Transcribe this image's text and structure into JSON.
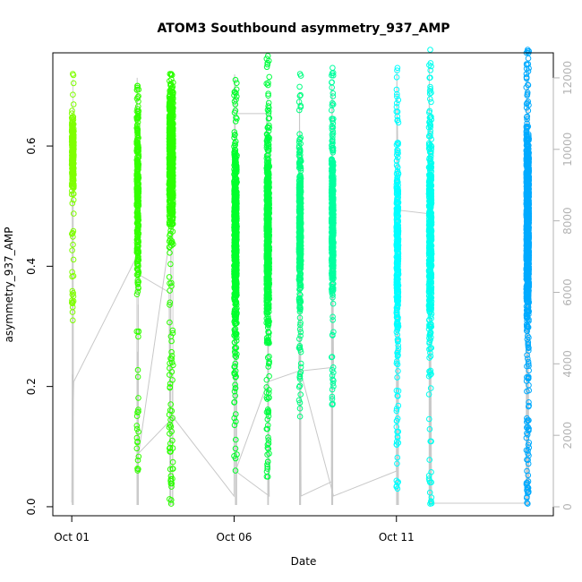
{
  "chart_data": {
    "type": "scatter",
    "title": "ATOM3 Southbound asymmetry_937_AMP",
    "xlabel": "Date",
    "ylabel": "asymmetry_937_AMP",
    "x_ticks": [
      "Oct 01",
      "Oct 06",
      "Oct 11"
    ],
    "xlim": [
      "2023-09-30T10:00",
      "2023-10-15T20:00"
    ],
    "ylim": [
      -0.015,
      0.755
    ],
    "y_ticks": [
      0.0,
      0.2,
      0.4,
      0.6
    ],
    "y2_label": "",
    "y2_ticks": [
      0,
      2000,
      4000,
      6000,
      8000,
      10000,
      12000
    ],
    "y2lim": [
      -250,
      12700
    ],
    "grid": false,
    "legend": "none",
    "series": [
      {
        "day": "2023-10-01",
        "start": "2023-10-01T00:00",
        "end": "2023-10-01T01:30",
        "color": "#7fff00",
        "range": [
          0.31,
          0.72
        ],
        "center": 0.59,
        "spread": 0.05,
        "count": 260
      },
      {
        "day": "2023-10-03",
        "start": "2023-10-03T00:00",
        "end": "2023-10-03T01:30",
        "color": "#33ff00",
        "range": [
          0.06,
          0.7
        ],
        "center": 0.52,
        "spread": 0.14,
        "count": 300
      },
      {
        "day": "2023-10-04",
        "start": "2023-10-04T00:00",
        "end": "2023-10-04T03:00",
        "color": "#2bff00",
        "range": [
          0.005,
          0.72
        ],
        "center": 0.58,
        "spread": 0.1,
        "count": 700
      },
      {
        "day": "2023-10-06",
        "start": "2023-10-06T00:00",
        "end": "2023-10-06T02:00",
        "color": "#00ff2b",
        "range": [
          0.06,
          0.71
        ],
        "center": 0.45,
        "spread": 0.13,
        "count": 650
      },
      {
        "day": "2023-10-07",
        "start": "2023-10-07T00:00",
        "end": "2023-10-07T02:00",
        "color": "#00ff40",
        "range": [
          0.05,
          0.75
        ],
        "center": 0.45,
        "spread": 0.14,
        "count": 650
      },
      {
        "day": "2023-10-08",
        "start": "2023-10-08T00:00",
        "end": "2023-10-08T01:30",
        "color": "#00ff80",
        "range": [
          0.15,
          0.72
        ],
        "center": 0.47,
        "spread": 0.11,
        "count": 420
      },
      {
        "day": "2023-10-09",
        "start": "2023-10-09T00:00",
        "end": "2023-10-09T01:30",
        "color": "#00ff9f",
        "range": [
          0.17,
          0.73
        ],
        "center": 0.48,
        "spread": 0.1,
        "count": 450
      },
      {
        "day": "2023-10-11",
        "start": "2023-10-11T00:00",
        "end": "2023-10-11T01:30",
        "color": "#00ffff",
        "range": [
          0.03,
          0.73
        ],
        "center": 0.43,
        "spread": 0.13,
        "count": 420
      },
      {
        "day": "2023-10-12",
        "start": "2023-10-12T00:00",
        "end": "2023-10-12T02:00",
        "color": "#00ffef",
        "range": [
          0.005,
          0.76
        ],
        "center": 0.45,
        "spread": 0.15,
        "count": 520
      },
      {
        "day": "2023-10-15",
        "start": "2023-10-15T00:00",
        "end": "2023-10-15T02:00",
        "color": "#00aaff",
        "range": [
          0.005,
          0.76
        ],
        "center": 0.47,
        "spread": 0.13,
        "count": 1100
      }
    ],
    "secondary_line": {
      "color": "#c8c8c8",
      "points": [
        {
          "t": "2023-10-01T00:00",
          "v": 120
        },
        {
          "t": "2023-10-01T00:20",
          "v": 3700
        },
        {
          "t": "2023-10-01T00:40",
          "v": 2000
        },
        {
          "t": "2023-10-01T01:30",
          "v": 3500
        },
        {
          "t": "2023-10-03T00:00",
          "v": 7000
        },
        {
          "t": "2023-10-03T00:20",
          "v": 12000
        },
        {
          "t": "2023-10-03T01:30",
          "v": 6500
        },
        {
          "t": "2023-10-04T00:00",
          "v": 6000
        },
        {
          "t": "2023-10-04T00:30",
          "v": 1500
        },
        {
          "t": "2023-10-04T01:30",
          "v": 7700
        },
        {
          "t": "2023-10-04T03:00",
          "v": 8200
        },
        {
          "t": "2023-10-03T01:30",
          "v": 1500
        },
        {
          "t": "2023-10-04T03:00",
          "v": 2500
        },
        {
          "t": "2023-10-06T00:00",
          "v": 300
        },
        {
          "t": "2023-10-06T00:20",
          "v": 12100
        },
        {
          "t": "2023-10-06T02:00",
          "v": 11000
        },
        {
          "t": "2023-10-07T00:00",
          "v": 11000
        },
        {
          "t": "2023-10-07T02:00",
          "v": 300
        },
        {
          "t": "2023-10-06T01:00",
          "v": 1000
        },
        {
          "t": "2023-10-07T01:00",
          "v": 3500
        },
        {
          "t": "2023-10-08T00:00",
          "v": 3800
        },
        {
          "t": "2023-10-08T00:20",
          "v": 11600
        },
        {
          "t": "2023-10-08T01:30",
          "v": 300
        },
        {
          "t": "2023-10-09T00:00",
          "v": 700
        },
        {
          "t": "2023-10-09T00:20",
          "v": 11800
        },
        {
          "t": "2023-10-09T01:30",
          "v": 3900
        },
        {
          "t": "2023-10-08T01:00",
          "v": 3800
        },
        {
          "t": "2023-10-09T01:30",
          "v": 300
        },
        {
          "t": "2023-10-11T00:00",
          "v": 1000
        },
        {
          "t": "2023-10-11T00:20",
          "v": 12200
        },
        {
          "t": "2023-10-11T01:30",
          "v": 8300
        },
        {
          "t": "2023-10-12T00:00",
          "v": 8200
        },
        {
          "t": "2023-10-12T00:20",
          "v": 12300
        },
        {
          "t": "2023-10-12T02:00",
          "v": 100
        },
        {
          "t": "2023-10-15T00:00",
          "v": 100
        },
        {
          "t": "2023-10-15T00:20",
          "v": 12200
        },
        {
          "t": "2023-10-15T02:00",
          "v": 200
        }
      ]
    }
  }
}
